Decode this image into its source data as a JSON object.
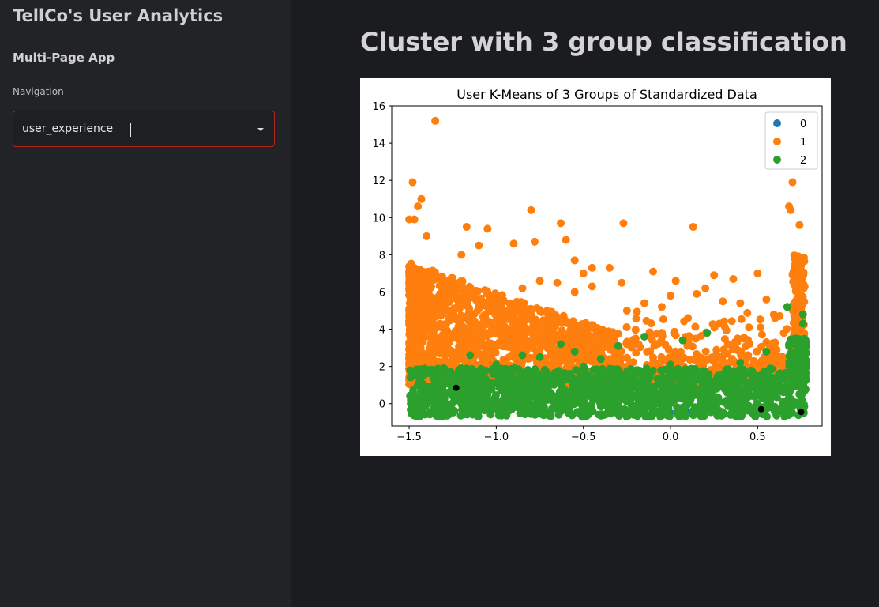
{
  "sidebar": {
    "app_title": "TellCo's User Analytics",
    "section_title": "Multi-Page App",
    "nav_label": "Navigation",
    "nav_selected": "user_experience"
  },
  "main": {
    "title": "Cluster with 3 group classification"
  },
  "colors": {
    "accent_border": "#b3231f",
    "cluster_0": "#1f77b4",
    "cluster_1": "#ff7f0e",
    "cluster_2": "#2ca02c",
    "centroid": "#000000"
  },
  "chart_data": {
    "type": "scatter",
    "title": "User K-Means of 3 Groups of Standardized Data",
    "xlabel": "",
    "ylabel": "",
    "xlim": [
      -1.6,
      0.87
    ],
    "ylim": [
      -1.2,
      16.0
    ],
    "xticks": [
      "−1.5",
      "−1.0",
      "−0.5",
      "0.0",
      "0.5"
    ],
    "xtick_values": [
      -1.5,
      -1.0,
      -0.5,
      0.0,
      0.5
    ],
    "yticks": [
      "0",
      "2",
      "4",
      "6",
      "8",
      "10",
      "12",
      "14",
      "16"
    ],
    "ytick_values": [
      0,
      2,
      4,
      6,
      8,
      10,
      12,
      14,
      16
    ],
    "legend": {
      "placement": "top-right",
      "entries": [
        "0",
        "1",
        "2"
      ]
    },
    "series": [
      {
        "name": "0",
        "color": "#1f77b4",
        "points": [
          [
            0.0,
            -0.5
          ],
          [
            0.1,
            -0.45
          ],
          [
            0.2,
            -0.55
          ],
          [
            0.35,
            -0.5
          ],
          [
            0.4,
            -0.3
          ],
          [
            0.45,
            -0.4
          ],
          [
            0.5,
            -0.5
          ],
          [
            0.55,
            -0.3
          ],
          [
            0.6,
            -0.45
          ],
          [
            0.65,
            -0.5
          ],
          [
            -0.3,
            -0.6
          ],
          [
            -0.2,
            -0.55
          ],
          [
            -0.1,
            -0.5
          ],
          [
            0.05,
            -0.35
          ],
          [
            0.25,
            -0.2
          ]
        ]
      },
      {
        "name": "1",
        "color": "#ff7f0e",
        "points": [
          [
            -1.35,
            15.2
          ],
          [
            -1.48,
            11.9
          ],
          [
            -1.45,
            10.6
          ],
          [
            -1.43,
            11.0
          ],
          [
            -1.5,
            9.9
          ],
          [
            -1.47,
            9.9
          ],
          [
            -1.4,
            9.0
          ],
          [
            -1.17,
            9.5
          ],
          [
            -1.05,
            9.4
          ],
          [
            -0.8,
            10.4
          ],
          [
            -0.63,
            9.7
          ],
          [
            -0.27,
            9.7
          ],
          [
            0.13,
            9.5
          ],
          [
            0.7,
            11.9
          ],
          [
            0.68,
            10.6
          ],
          [
            0.69,
            10.4
          ],
          [
            0.74,
            9.6
          ],
          [
            -0.6,
            8.8
          ],
          [
            -0.78,
            8.7
          ],
          [
            -0.9,
            8.6
          ],
          [
            -1.1,
            8.5
          ],
          [
            -1.2,
            8.0
          ],
          [
            -0.55,
            7.7
          ],
          [
            -0.45,
            7.3
          ],
          [
            -0.5,
            7.0
          ],
          [
            -0.35,
            7.3
          ],
          [
            -0.1,
            7.1
          ],
          [
            0.03,
            6.6
          ],
          [
            0.25,
            6.9
          ],
          [
            0.5,
            7.0
          ],
          [
            0.36,
            6.7
          ],
          [
            -0.28,
            6.5
          ],
          [
            -0.45,
            6.3
          ],
          [
            -0.55,
            6.0
          ],
          [
            -0.65,
            6.5
          ],
          [
            -0.75,
            6.6
          ],
          [
            -0.85,
            6.2
          ],
          [
            0.2,
            6.2
          ],
          [
            0.15,
            5.9
          ],
          [
            0.0,
            5.8
          ],
          [
            0.3,
            5.5
          ],
          [
            0.4,
            5.4
          ],
          [
            0.55,
            5.6
          ],
          [
            -0.05,
            5.2
          ],
          [
            -0.15,
            5.4
          ],
          [
            -0.25,
            5.0
          ],
          [
            0.1,
            4.6
          ],
          [
            0.28,
            4.3
          ],
          [
            0.45,
            4.1
          ],
          [
            0.6,
            4.6
          ],
          [
            0.65,
            3.8
          ],
          [
            0.55,
            3.3
          ],
          [
            0.42,
            3.5
          ],
          [
            0.33,
            3.2
          ],
          [
            -0.6,
            3.4
          ],
          [
            -0.4,
            3.1
          ],
          [
            -0.2,
            3.5
          ],
          [
            0.02,
            3.8
          ],
          [
            -0.8,
            4.6
          ],
          [
            -1.0,
            4.4
          ]
        ],
        "band": {
          "x_range": [
            -1.5,
            -0.3
          ],
          "y_range": [
            1.0,
            8.0
          ]
        }
      },
      {
        "name": "2",
        "color": "#2ca02c",
        "points": [
          [
            -1.15,
            2.6
          ],
          [
            -0.85,
            2.6
          ],
          [
            -0.75,
            2.5
          ],
          [
            -0.63,
            3.2
          ],
          [
            -0.55,
            2.8
          ],
          [
            -0.4,
            2.4
          ],
          [
            -0.3,
            3.1
          ],
          [
            -0.15,
            3.6
          ],
          [
            0.07,
            3.4
          ],
          [
            0.21,
            3.8
          ],
          [
            0.55,
            2.8
          ],
          [
            0.67,
            5.2
          ],
          [
            0.76,
            4.8
          ],
          [
            0.76,
            4.3
          ],
          [
            0.72,
            3.5
          ],
          [
            -1.3,
            1.9
          ],
          [
            -1.0,
            2.1
          ],
          [
            -0.5,
            2.0
          ],
          [
            0.0,
            2.1
          ],
          [
            0.4,
            2.2
          ]
        ],
        "band": {
          "x_range": [
            -1.5,
            0.78
          ],
          "y_range": [
            -0.7,
            1.9
          ]
        }
      },
      {
        "name": "centroids",
        "color": "#000000",
        "points": [
          [
            -1.23,
            0.85
          ],
          [
            0.52,
            -0.3
          ],
          [
            0.75,
            -0.45
          ]
        ]
      }
    ]
  }
}
